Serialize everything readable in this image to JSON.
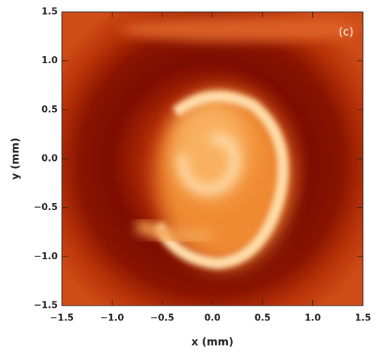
{
  "chart_data": {
    "type": "image",
    "annotation": "(c)",
    "xlabel": "x (mm)",
    "ylabel": "y (mm)",
    "xlim": [
      -1.5,
      1.5
    ],
    "ylim": [
      -1.5,
      1.5
    ],
    "xticks": [
      {
        "value": -1.5,
        "label": "−1.5"
      },
      {
        "value": -1,
        "label": "−1.0"
      },
      {
        "value": -0.5,
        "label": "−0.5"
      },
      {
        "value": 0,
        "label": "0.0"
      },
      0.5,
      {
        "value": 1,
        "label": "1.0"
      },
      1.5
    ],
    "yticks": [
      {
        "value": -1.5,
        "label": "−1.5"
      },
      {
        "value": -1,
        "label": "−1.0"
      },
      {
        "value": -0.5,
        "label": "−0.5"
      },
      {
        "value": 0,
        "label": "0.0"
      },
      0.5,
      {
        "value": 1,
        "label": "1.0"
      },
      1.5
    ]
  }
}
